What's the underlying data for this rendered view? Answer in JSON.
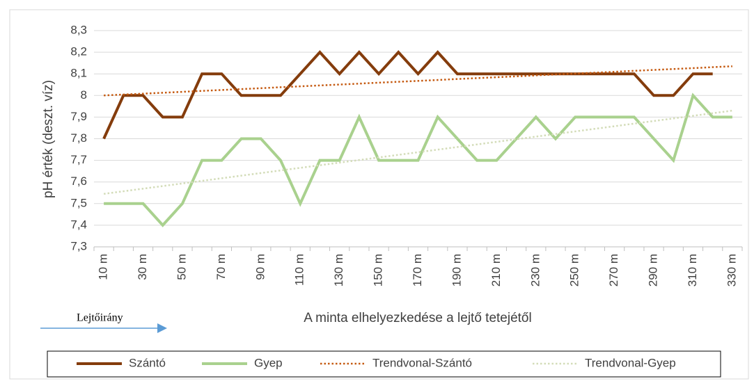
{
  "chart_data": {
    "type": "line",
    "y_label": "pH érték (deszt. víz)",
    "x_label": "A minta elhelyezkedése a lejtő tetejétől",
    "annotation": "Lejtőirány",
    "categories": [
      "10 m",
      null,
      "30 m",
      null,
      "50 m",
      null,
      "70 m",
      null,
      "90 m",
      null,
      "110 m",
      null,
      "130 m",
      null,
      "150 m",
      null,
      "170 m",
      null,
      "190 m",
      null,
      "210 m",
      null,
      "230 m",
      null,
      "250 m",
      null,
      "270 m",
      null,
      "290 m",
      null,
      "310 m",
      null,
      "330 m"
    ],
    "series": [
      {
        "name": "Szántó",
        "color": "#843c0c",
        "style": "solid",
        "values": [
          7.8,
          8.0,
          8.0,
          7.9,
          7.9,
          8.1,
          8.1,
          8.0,
          8.0,
          8.0,
          8.1,
          8.2,
          8.1,
          8.2,
          8.1,
          8.2,
          8.1,
          8.2,
          8.1,
          8.1,
          8.1,
          8.1,
          8.1,
          8.1,
          8.1,
          8.1,
          8.1,
          8.1,
          8.0,
          8.0,
          8.1,
          8.1,
          null
        ]
      },
      {
        "name": "Gyep",
        "color": "#a9d18e",
        "style": "solid",
        "values": [
          7.5,
          7.5,
          7.5,
          7.4,
          7.5,
          7.7,
          7.7,
          7.8,
          7.8,
          7.7,
          7.5,
          7.7,
          7.7,
          7.9,
          7.7,
          7.7,
          7.7,
          7.9,
          7.8,
          7.7,
          7.7,
          7.8,
          7.9,
          7.8,
          7.9,
          7.9,
          7.9,
          7.9,
          7.8,
          7.7,
          8.0,
          7.9,
          7.9
        ]
      },
      {
        "name": "Trendvonal-Szántó",
        "color": "#c55a11",
        "style": "dotted",
        "trend": [
          8.0,
          8.135
        ]
      },
      {
        "name": "Trendvonal-Gyep",
        "color": "#d3dcb8",
        "style": "dotted",
        "trend": [
          7.545,
          7.93
        ]
      }
    ],
    "ylim": [
      7.3,
      8.3
    ],
    "yticks": [
      {
        "value": 7.3,
        "label": "7,3"
      },
      {
        "value": 7.4,
        "label": "7,4"
      },
      {
        "value": 7.5,
        "label": "7,5"
      },
      {
        "value": 7.6,
        "label": "7,6"
      },
      {
        "value": 7.7,
        "label": "7,7"
      },
      {
        "value": 7.8,
        "label": "7,8"
      },
      {
        "value": 7.9,
        "label": "7,9"
      },
      8,
      {
        "value": 8.1,
        "label": "8,1"
      },
      {
        "value": 8.2,
        "label": "8,2"
      },
      {
        "value": 8.3,
        "label": "8,3"
      }
    ],
    "grid": true
  }
}
